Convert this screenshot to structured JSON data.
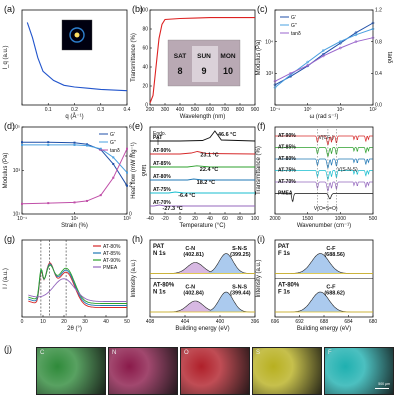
{
  "figure_panels": [
    "(a)",
    "(b)",
    "(c)",
    "(d)",
    "(e)",
    "(f)",
    "(g)",
    "(h)",
    "(i)",
    "(j)"
  ],
  "chart_data": [
    {
      "id": "a",
      "type": "line",
      "xlabel": "q (Å⁻¹)",
      "ylabel": "I_q (a.u.)",
      "xlim": [
        0.0,
        0.4
      ],
      "xticks": [
        "0.1",
        "0.2",
        "0.3",
        "0.4"
      ],
      "log_y": true,
      "inset": "2D-SAXS pattern",
      "series": [
        {
          "color": "#2255cc",
          "x": [
            0.02,
            0.04,
            0.06,
            0.08,
            0.12,
            0.16,
            0.2,
            0.25,
            0.3,
            0.35,
            0.4
          ],
          "y": [
            6.0,
            3.2,
            1.4,
            0.8,
            0.55,
            0.45,
            0.42,
            0.4,
            0.38,
            0.37,
            0.36
          ]
        }
      ]
    },
    {
      "id": "b",
      "type": "line",
      "xlabel": "Wavelength (nm)",
      "ylabel": "Transmittance (%)",
      "xlim": [
        200,
        900
      ],
      "ylim": [
        0,
        100
      ],
      "xticks": [
        "200",
        "300",
        "400",
        "500",
        "600",
        "700",
        "800",
        "900"
      ],
      "yticks": [
        "0",
        "20",
        "40",
        "60",
        "80",
        "100"
      ],
      "inset_words": [
        "SAT",
        "SUN",
        "MON"
      ],
      "inset_nums": [
        "8",
        "9",
        "10"
      ],
      "series": [
        {
          "color": "#dd2222",
          "x": [
            200,
            220,
            240,
            260,
            280,
            300,
            400,
            500,
            600,
            700,
            800,
            900
          ],
          "y": [
            2,
            10,
            40,
            70,
            85,
            90,
            91,
            91.5,
            92,
            92,
            92,
            92
          ]
        }
      ]
    },
    {
      "id": "c",
      "type": "line",
      "xlabel": "ω (rad s⁻¹)",
      "ylabel": "Modulus (Pa)",
      "y2label": "tanδ",
      "log_x": true,
      "xticks": [
        "10⁻¹",
        "10⁰",
        "10¹",
        "10²"
      ],
      "yticks": [
        "10³",
        "10⁴"
      ],
      "y2lim": [
        0.0,
        1.2
      ],
      "y2ticks": [
        "0.0",
        "0.4",
        "0.8",
        "1.2"
      ],
      "legend": [
        "G'",
        "G''",
        "tanδ"
      ],
      "legend_position": "top-left",
      "series": [
        {
          "name": "G'",
          "color": "#1f4fa8",
          "x": [
            0.1,
            0.3,
            1,
            3,
            10,
            30,
            100
          ],
          "y": [
            800,
            1200,
            2000,
            3500,
            6000,
            10000,
            16000
          ]
        },
        {
          "name": "G''",
          "color": "#4aa0e0",
          "x": [
            0.1,
            0.3,
            1,
            3,
            10,
            30,
            100
          ],
          "y": [
            700,
            1300,
            2400,
            4200,
            6500,
            9000,
            12000
          ]
        },
        {
          "name": "tanδ",
          "color": "#9a66cc",
          "x": [
            0.1,
            0.3,
            1,
            3,
            10,
            30,
            100
          ],
          "y": [
            0.3,
            0.4,
            0.5,
            0.62,
            0.72,
            0.8,
            0.85
          ]
        }
      ]
    },
    {
      "id": "d",
      "type": "line",
      "xlabel": "Strain (%)",
      "ylabel": "Modulus (Pa)",
      "y2label": "tanδ",
      "log_x": true,
      "xticks": [
        "10⁻¹",
        "10¹",
        "10³"
      ],
      "yticks": [
        "10¹",
        "10³",
        "10⁵"
      ],
      "y2lim": [
        0,
        6
      ],
      "y2ticks": [
        "0",
        "2",
        "4",
        "6"
      ],
      "legend": [
        "G'",
        "G''",
        "tanδ"
      ],
      "legend_position": "top-right",
      "series": [
        {
          "name": "G'",
          "color": "#1f4fa8",
          "x": [
            0.1,
            1,
            10,
            30,
            100,
            300,
            1000
          ],
          "y": [
            20000,
            20000,
            19000,
            16000,
            9000,
            2000,
            200
          ]
        },
        {
          "name": "G''",
          "color": "#4aa0e0",
          "x": [
            0.1,
            1,
            10,
            30,
            100,
            300,
            1000
          ],
          "y": [
            15000,
            15000,
            15000,
            14000,
            10000,
            4000,
            800
          ]
        },
        {
          "name": "tanδ",
          "color": "#c04fa8",
          "x": [
            0.1,
            1,
            10,
            30,
            100,
            300,
            1000
          ],
          "y": [
            0.7,
            0.75,
            0.8,
            0.9,
            1.3,
            2.5,
            4.5
          ]
        }
      ]
    },
    {
      "id": "e",
      "type": "line",
      "xlabel": "Temperature (°C)",
      "ylabel": "Heat flow (mW mg⁻¹)",
      "xlim": [
        -40,
        100
      ],
      "xticks": [
        "-40",
        "-20",
        "0",
        "20",
        "40",
        "60",
        "80",
        "100"
      ],
      "endo_label": "Endo.",
      "series": [
        {
          "name": "PAT",
          "color": "#111111",
          "offset": 5.0,
          "x": [
            -40,
            0,
            30,
            40,
            46.6,
            55,
            100
          ],
          "y": [
            0,
            0,
            -0.05,
            -0.35,
            -1.0,
            -0.1,
            0
          ]
        },
        {
          "name": "AT-90%",
          "color": "#d62728",
          "offset": 4.0,
          "x": [
            -40,
            0,
            15,
            23.1,
            35,
            100
          ],
          "y": [
            0,
            0,
            -0.1,
            -0.25,
            -0.05,
            0
          ]
        },
        {
          "name": "AT-85%",
          "color": "#2ca02c",
          "offset": 3.0,
          "x": [
            -40,
            10,
            22.4,
            40,
            100
          ],
          "y": [
            0,
            0,
            -0.12,
            0,
            0
          ]
        },
        {
          "name": "AT-80%",
          "color": "#1f77b4",
          "offset": 2.0,
          "x": [
            -40,
            10,
            18.2,
            30,
            100
          ],
          "y": [
            0,
            0,
            -0.1,
            0,
            0
          ]
        },
        {
          "name": "AT-75%",
          "color": "#17becf",
          "offset": 1.0,
          "x": [
            -40,
            -15,
            -6.4,
            5,
            100
          ],
          "y": [
            0,
            0,
            -0.1,
            0,
            0
          ]
        },
        {
          "name": "AT-70%",
          "color": "#9467bd",
          "offset": 0.0,
          "x": [
            -40,
            -35,
            -27.3,
            -20,
            100
          ],
          "y": [
            0,
            0,
            -0.1,
            0,
            0
          ]
        }
      ],
      "annotations": [
        "46.6 °C",
        "23.1 °C",
        "22.4 °C",
        "18.2 °C",
        "-6.4 °C",
        "-27.3 °C"
      ]
    },
    {
      "id": "f",
      "type": "line",
      "xlabel": "Wavenumber (cm⁻¹)",
      "ylabel": "Transmittance (%)",
      "xlim": [
        2000,
        500
      ],
      "xticks": [
        "2000",
        "1500",
        "1000",
        "500"
      ],
      "peak_labels": [
        "V(CF₃)",
        "V(S-N-S)",
        "V(O=S=O)"
      ],
      "series": [
        {
          "name": "AT-90%",
          "color": "#d62728",
          "offset": 6
        },
        {
          "name": "AT-85%",
          "color": "#2ca02c",
          "offset": 5
        },
        {
          "name": "AT-80%",
          "color": "#1f77b4",
          "offset": 4
        },
        {
          "name": "AT-75%",
          "color": "#17becf",
          "offset": 3
        },
        {
          "name": "AT-70%",
          "color": "#9467bd",
          "offset": 2
        },
        {
          "name": "PMEA",
          "color": "#111111",
          "offset": 1
        }
      ]
    },
    {
      "id": "g",
      "type": "line",
      "xlabel": "2θ (°)",
      "ylabel": "I / (a.u.)",
      "xlim": [
        0,
        50
      ],
      "xticks": [
        "0",
        "10",
        "20",
        "30",
        "40",
        "50"
      ],
      "legend": [
        "AT-80%",
        "AT-85%",
        "AT-90%",
        "PMEA"
      ],
      "legend_position": "top-right",
      "dashed_lines_x": [
        9,
        13,
        21
      ],
      "series": [
        {
          "name": "AT-80%",
          "color": "#d62728"
        },
        {
          "name": "AT-85%",
          "color": "#1f77b4"
        },
        {
          "name": "AT-90%",
          "color": "#2ca02c"
        },
        {
          "name": "PMEA",
          "color": "#9467bd"
        }
      ]
    },
    {
      "id": "h",
      "type": "line",
      "xlabel": "Building energy (eV)",
      "ylabel": "Intensity (a.u.)",
      "xlim": [
        408,
        396
      ],
      "xticks": [
        "408",
        "404",
        "400",
        "396"
      ],
      "panels": [
        {
          "title": [
            "PAT",
            "N 1s"
          ],
          "peaks": [
            {
              "label": "C-N",
              "value": "(402.81)"
            },
            {
              "label": "S-N-S",
              "value": "(399.25)"
            }
          ]
        },
        {
          "title": [
            "AT-80%",
            "N 1s"
          ],
          "peaks": [
            {
              "label": "C-N",
              "value": "(402.84)"
            },
            {
              "label": "S-N-S",
              "value": "(399.44)"
            }
          ]
        }
      ]
    },
    {
      "id": "i",
      "type": "line",
      "xlabel": "Building energy (eV)",
      "ylabel": "Intensity (a.u.)",
      "xlim": [
        696,
        680
      ],
      "xticks": [
        "696",
        "692",
        "688",
        "684",
        "680"
      ],
      "panels": [
        {
          "title": [
            "PAT",
            "F 1s"
          ],
          "peaks": [
            {
              "label": "C-F",
              "value": "(688.56)"
            }
          ]
        },
        {
          "title": [
            "AT-80%",
            "F 1s"
          ],
          "peaks": [
            {
              "label": "C-F",
              "value": "(688.62)"
            }
          ]
        }
      ]
    }
  ],
  "mapping": {
    "tiles": [
      {
        "element": "C",
        "color": "#2f8a3a"
      },
      {
        "element": "N",
        "color": "#8a1a4a"
      },
      {
        "element": "O",
        "color": "#b0202a"
      },
      {
        "element": "S",
        "color": "#b8b020"
      },
      {
        "element": "F",
        "color": "#1fb0b0"
      }
    ],
    "scale_text": "500 μm"
  }
}
